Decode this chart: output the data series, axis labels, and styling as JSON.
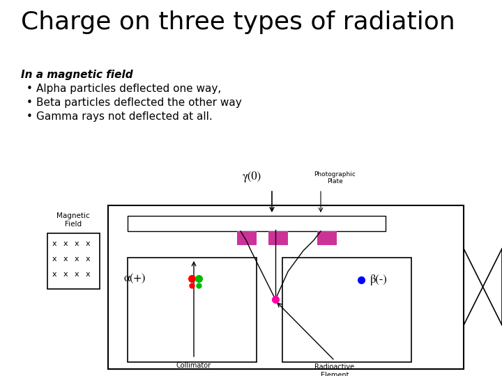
{
  "title": "Charge on three types of radiation",
  "subtitle": "In a magnetic field",
  "bullets": [
    "Alpha particles deflected one way,",
    "Beta particles deflected the other way",
    "Gamma rays not deflected at all."
  ],
  "background_color": "#ffffff",
  "title_fontsize": 26,
  "subtitle_fontsize": 11,
  "text_fontsize": 11,
  "diagram": {
    "pink_color": "#CC3399",
    "blue_dot_color": "#0000FF",
    "red_dot_color": "#FF0000",
    "green_dot_color": "#00CC00",
    "magenta_dot_color": "#FF00AA"
  }
}
